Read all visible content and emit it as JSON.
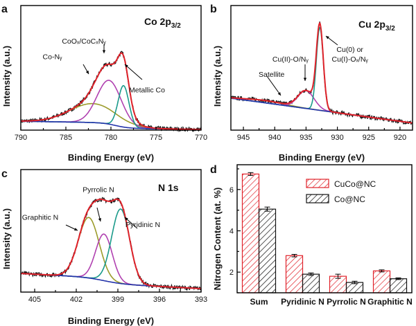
{
  "chart_data": [
    {
      "type": "line",
      "panel": "a",
      "title": "Co 2p3/2",
      "xlabel": "Binding Energy (eV)",
      "ylabel": "Intensity (a.u.)",
      "xlim": [
        790,
        770
      ],
      "xticks": [
        790,
        785,
        780,
        775,
        770
      ],
      "ylim": [
        0,
        1
      ],
      "components": [
        {
          "label": "Co-Nᵧ",
          "center": 782.0,
          "width": 2.6,
          "amp": 0.16,
          "color": "#9b9b2a"
        },
        {
          "label": "CoOₓ/CoCₓNᵧ",
          "center": 780.2,
          "width": 1.35,
          "amp": 0.37,
          "color": "#b040b0"
        },
        {
          "label": "Metallic Co",
          "center": 778.6,
          "width": 0.6,
          "amp": 0.35,
          "color": "#1a9a8a"
        }
      ],
      "background": {
        "left": 0.03,
        "right": 0.005,
        "center": 779.5,
        "step": 0.045
      },
      "annotations": [
        {
          "text": "Co-Nᵧ",
          "at": [
            786.5,
            0.6
          ]
        },
        {
          "text": "CoOₓ/CoCₓNᵧ",
          "at": [
            783.0,
            0.73
          ]
        },
        {
          "text": "Metallic Co",
          "at": [
            776.0,
            0.32
          ]
        }
      ],
      "colors": {
        "envelope": "#e0222a",
        "raw": "#111111",
        "background": "#2233aa"
      }
    },
    {
      "type": "line",
      "panel": "b",
      "title": "Cu 2p3/2",
      "xlabel": "Binding Energy (eV)",
      "ylabel": "Intensity (a.u.)",
      "xlim": [
        947,
        918
      ],
      "xticks": [
        945,
        940,
        935,
        930,
        925,
        920
      ],
      "ylim": [
        0,
        1
      ],
      "components": [
        {
          "label": "Satellite",
          "center": 941.5,
          "width": 3.0,
          "amp": 0.02,
          "color": "#9b9b2a"
        },
        {
          "label": "Cu(II)-O/Nᵧ",
          "center": 935.0,
          "width": 1.3,
          "amp": 0.15,
          "color": "#b040b0"
        },
        {
          "label": "Cu(0) or Cu(I)-Oₓ/Nᵧ",
          "center": 932.8,
          "width": 0.55,
          "amp": 0.7,
          "color": "#1a9a8a"
        }
      ],
      "background": {
        "left": 0.27,
        "right": 0.06,
        "linear": true
      },
      "annotations": [
        {
          "text": "Satellite",
          "at": [
            940.5,
            0.45
          ]
        },
        {
          "text": "Cu(II)-O/Nᵧ",
          "at": [
            937.5,
            0.58
          ]
        },
        {
          "text": "Cu(0) or",
          "at": [
            928.0,
            0.66
          ]
        },
        {
          "text": "Cu(I)-Oₓ/Nᵧ",
          "at": [
            928.0,
            0.58
          ]
        }
      ],
      "colors": {
        "envelope": "#e0222a",
        "raw": "#111111",
        "background": "#2233aa"
      }
    },
    {
      "type": "line",
      "panel": "c",
      "title": "N 1s",
      "xlabel": "Binding Energy (eV)",
      "ylabel": "Intensity (a.u.)",
      "xlim": [
        406,
        393
      ],
      "xticks": [
        405,
        402,
        399,
        396,
        393
      ],
      "ylim": [
        0,
        1
      ],
      "components": [
        {
          "label": "Graphitic N",
          "center": 401.1,
          "width": 0.75,
          "amp": 0.52,
          "color": "#9b9b2a"
        },
        {
          "label": "Pyrrolic N",
          "center": 400.0,
          "width": 0.6,
          "amp": 0.4,
          "color": "#b040b0"
        },
        {
          "label": "Pyridinic N",
          "center": 398.8,
          "width": 0.65,
          "amp": 0.64,
          "color": "#1a9a8a"
        }
      ],
      "background": {
        "left": 0.11,
        "right": 0.03,
        "center": 400.0,
        "step": 0.05
      },
      "annotations": [
        {
          "text": "Graphitic N",
          "at": [
            404.6,
            0.62
          ]
        },
        {
          "text": "Pyrrolic N",
          "at": [
            400.4,
            0.86
          ]
        },
        {
          "text": "Pyridinic N",
          "at": [
            397.2,
            0.56
          ]
        }
      ],
      "colors": {
        "envelope": "#e0222a",
        "raw": "#111111",
        "background": "#2233aa"
      }
    },
    {
      "type": "bar",
      "panel": "d",
      "xlabel": "",
      "ylabel": "Nitrogen Content (at. %)",
      "categories": [
        "Sum",
        "Pyridinic N",
        "Pyrrolic N",
        "Graphitic N"
      ],
      "ylim": [
        1.0,
        7.2
      ],
      "yticks": [
        2,
        4,
        6
      ],
      "series": [
        {
          "name": "CuCo@NC",
          "values": [
            6.75,
            2.8,
            1.8,
            2.06
          ],
          "errors": [
            0.07,
            0.06,
            0.1,
            0.05
          ],
          "color": "#e0222a"
        },
        {
          "name": "Co@NC",
          "values": [
            5.05,
            1.9,
            1.5,
            1.68
          ],
          "errors": [
            0.1,
            0.06,
            0.06,
            0.04
          ],
          "color": "#111111"
        }
      ],
      "legend": "top-right"
    }
  ]
}
